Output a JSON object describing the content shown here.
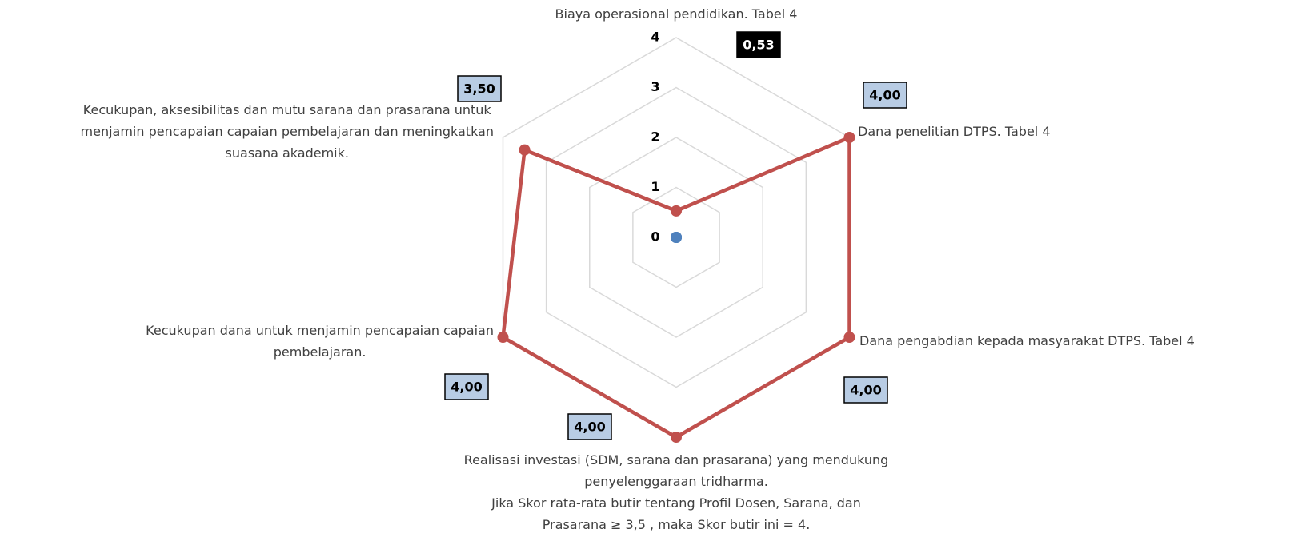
{
  "chart_data": {
    "type": "radar",
    "categories": [
      "Biaya operasional pendidikan. Tabel 4",
      "Dana penelitian DTPS. Tabel 4",
      "Dana pengabdian kepada masyarakat DTPS. Tabel 4",
      "Realisasi investasi (SDM, sarana dan prasarana) yang mendukung\npenyelenggaraan tridharma.\nJika Skor rata-rata butir tentang Profil Dosen, Sarana, dan\nPrasarana ≥ 3,5 , maka Skor butir ini = 4.",
      "Kecukupan dana untuk menjamin pencapaian capaian\npembelajaran.",
      "Kecukupan, aksesibilitas dan mutu sarana dan prasarana untuk\nmenjamin pencapaian capaian pembelajaran dan meningkatkan\nsuasana akademik."
    ],
    "series": [
      {
        "color": "#c0504d",
        "values": [
          0.53,
          4,
          4,
          4,
          4,
          3.5
        ],
        "value_labels": [
          "0,53",
          "4,00",
          "4,00",
          "4,00",
          "4,00",
          "3,50"
        ]
      },
      {
        "color": "#4f81bd",
        "values": [
          0,
          0,
          0,
          0,
          0,
          0
        ]
      }
    ],
    "ylim": [
      0,
      4
    ],
    "yticks": [
      0,
      1,
      2,
      3,
      4
    ],
    "grid": true
  }
}
